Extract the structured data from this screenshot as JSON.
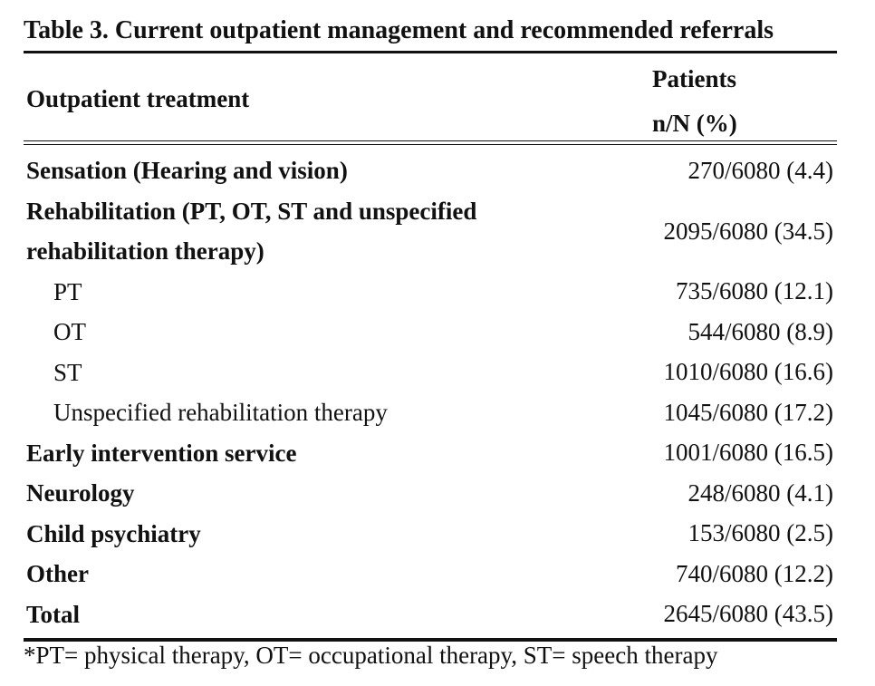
{
  "caption": "Table 3. Current outpatient management and recommended referrals",
  "header": {
    "col1": "Outpatient treatment",
    "col2_line1": "Patients",
    "col2_line2": "n/N (%)"
  },
  "rows": [
    {
      "label": "Sensation (Hearing and vision)",
      "value": "270/6080 (4.4)"
    },
    {
      "label_line1": "Rehabilitation (PT, OT, ST and unspecified",
      "label_line2": "rehabilitation therapy)",
      "value": "2095/6080 (34.5)"
    },
    {
      "label": "PT",
      "value": "735/6080 (12.1)"
    },
    {
      "label": "OT",
      "value": "544/6080 (8.9)"
    },
    {
      "label": "ST",
      "value": "1010/6080 (16.6)"
    },
    {
      "label": "Unspecified rehabilitation therapy",
      "value": "1045/6080 (17.2)"
    },
    {
      "label": "Early intervention service",
      "value": "1001/6080 (16.5)"
    },
    {
      "label": "Neurology",
      "value": "248/6080 (4.1)"
    },
    {
      "label": "Child psychiatry",
      "value": "153/6080 (2.5)"
    },
    {
      "label": "Other",
      "value": "740/6080 (12.2)"
    },
    {
      "label": "Total",
      "value": "2645/6080 (43.5)"
    }
  ],
  "footnote": "*PT= physical therapy, OT= occupational therapy, ST= speech therapy"
}
